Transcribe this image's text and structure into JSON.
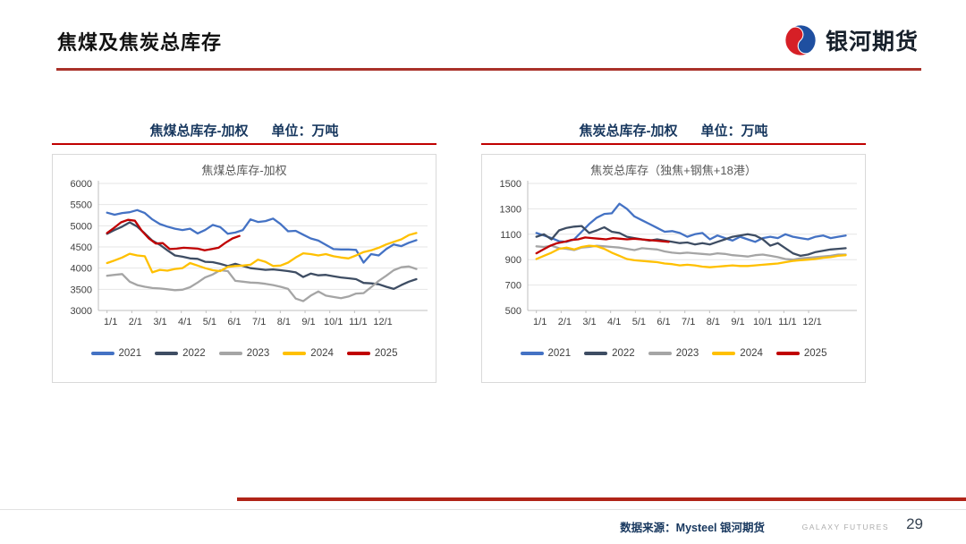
{
  "page": {
    "title": "焦煤及焦炭总库存"
  },
  "logo": {
    "text": "银河期货"
  },
  "footer": {
    "source": "数据来源：Mysteel 银河期货",
    "brand": "GALAXY FUTURES",
    "page_number": "29"
  },
  "colors": {
    "title_underline": "#A93129",
    "panel_underline": "#C00000",
    "panel_title": "#17375E",
    "logo_blue": "#1F4FA0",
    "logo_red": "#D61F26"
  },
  "charts": [
    {
      "header": {
        "title": "焦煤总库存-加权",
        "unit": "单位：万吨"
      },
      "chart_data": {
        "type": "line",
        "title": "焦煤总库存-加权",
        "ylim": [
          3000,
          6000
        ],
        "ytick_step": 500,
        "xticks": [
          "1/1",
          "2/1",
          "3/1",
          "4/1",
          "5/1",
          "6/1",
          "7/1",
          "8/1",
          "9/1",
          "10/1",
          "11/1",
          "12/1"
        ],
        "grid": "horizontal",
        "legend_position": "bottom",
        "series": [
          {
            "name": "2021",
            "color": "#4472C4",
            "x_end": 12.5,
            "values": [
              5310,
              5260,
              5300,
              5320,
              5370,
              5300,
              5150,
              5040,
              4980,
              4930,
              4900,
              4930,
              4820,
              4900,
              5020,
              4970,
              4810,
              4840,
              4900,
              5150,
              5090,
              5110,
              5170,
              5040,
              4870,
              4880,
              4790,
              4700,
              4650,
              4550,
              4450,
              4440,
              4440,
              4430,
              4130,
              4330,
              4300,
              4450,
              4560,
              4520,
              4600,
              4660
            ]
          },
          {
            "name": "2022",
            "color": "#3E4D63",
            "x_end": 12.5,
            "values": [
              4810,
              4900,
              4980,
              5080,
              4980,
              4820,
              4650,
              4550,
              4420,
              4300,
              4270,
              4230,
              4220,
              4150,
              4140,
              4100,
              4050,
              4100,
              4050,
              4000,
              3980,
              3960,
              3970,
              3950,
              3930,
              3900,
              3790,
              3870,
              3830,
              3840,
              3810,
              3780,
              3760,
              3740,
              3650,
              3640,
              3620,
              3560,
              3510,
              3600,
              3680,
              3740
            ]
          },
          {
            "name": "2023",
            "color": "#A5A5A5",
            "x_end": 12.5,
            "values": [
              3820,
              3840,
              3860,
              3680,
              3600,
              3560,
              3530,
              3520,
              3500,
              3480,
              3490,
              3550,
              3660,
              3780,
              3850,
              3950,
              3930,
              3700,
              3680,
              3660,
              3650,
              3630,
              3600,
              3560,
              3510,
              3280,
              3220,
              3350,
              3450,
              3350,
              3320,
              3290,
              3330,
              3400,
              3410,
              3550,
              3700,
              3820,
              3950,
              4020,
              4040,
              3980
            ]
          },
          {
            "name": "2024",
            "color": "#FFC000",
            "x_end": 12.5,
            "values": [
              4120,
              4180,
              4250,
              4340,
              4300,
              4280,
              3900,
              3960,
              3940,
              3980,
              4000,
              4120,
              4060,
              4000,
              3950,
              3930,
              4030,
              4050,
              4060,
              4080,
              4200,
              4150,
              4050,
              4060,
              4130,
              4250,
              4350,
              4330,
              4300,
              4330,
              4280,
              4250,
              4230,
              4300,
              4380,
              4420,
              4480,
              4560,
              4620,
              4680,
              4780,
              4830
            ]
          },
          {
            "name": "2025",
            "color": "#C00000",
            "x_end": 5.35,
            "values": [
              4830,
              4950,
              5080,
              5140,
              5120,
              4880,
              4700,
              4580,
              4590,
              4450,
              4460,
              4480,
              4470,
              4460,
              4420,
              4450,
              4480,
              4600,
              4700,
              4760
            ]
          }
        ]
      }
    },
    {
      "header": {
        "title": "焦炭总库存-加权",
        "unit": "单位：万吨"
      },
      "chart_data": {
        "type": "line",
        "title": "焦炭总库存（独焦+钢焦+18港）",
        "ylim": [
          500,
          1500
        ],
        "ytick_step": 200,
        "xticks": [
          "1/1",
          "2/1",
          "3/1",
          "4/1",
          "5/1",
          "6/1",
          "7/1",
          "8/1",
          "9/1",
          "10/1",
          "11/1",
          "12/1"
        ],
        "grid": "horizontal",
        "legend_position": "bottom",
        "series": [
          {
            "name": "2021",
            "color": "#4472C4",
            "x_end": 12.5,
            "values": [
              1110,
              1090,
              1070,
              1045,
              1040,
              1060,
              1120,
              1180,
              1230,
              1260,
              1265,
              1340,
              1300,
              1240,
              1210,
              1180,
              1150,
              1120,
              1125,
              1110,
              1080,
              1100,
              1110,
              1060,
              1090,
              1070,
              1050,
              1080,
              1060,
              1040,
              1070,
              1080,
              1070,
              1100,
              1080,
              1070,
              1060,
              1080,
              1090,
              1070,
              1080,
              1090
            ]
          },
          {
            "name": "2022",
            "color": "#3E4D63",
            "x_end": 12.5,
            "values": [
              1080,
              1100,
              1060,
              1130,
              1150,
              1160,
              1165,
              1110,
              1130,
              1155,
              1120,
              1110,
              1080,
              1070,
              1060,
              1050,
              1060,
              1050,
              1040,
              1030,
              1035,
              1020,
              1030,
              1020,
              1040,
              1060,
              1080,
              1090,
              1100,
              1090,
              1060,
              1010,
              1030,
              990,
              950,
              930,
              940,
              960,
              970,
              980,
              985,
              990
            ]
          },
          {
            "name": "2023",
            "color": "#A5A5A5",
            "x_end": 12.5,
            "values": [
              1005,
              1000,
              1010,
              990,
              985,
              975,
              995,
              1000,
              1010,
              1005,
              1000,
              995,
              985,
              975,
              990,
              985,
              980,
              965,
              955,
              950,
              955,
              950,
              945,
              940,
              950,
              945,
              935,
              930,
              925,
              935,
              940,
              930,
              920,
              905,
              900,
              910,
              915,
              920,
              925,
              930,
              940,
              940
            ]
          },
          {
            "name": "2024",
            "color": "#FFC000",
            "x_end": 12.5,
            "values": [
              905,
              930,
              955,
              985,
              995,
              980,
              1000,
              1010,
              1005,
              985,
              955,
              930,
              905,
              895,
              890,
              885,
              880,
              870,
              865,
              855,
              860,
              855,
              845,
              840,
              845,
              850,
              855,
              850,
              850,
              855,
              860,
              865,
              870,
              880,
              890,
              895,
              900,
              905,
              915,
              920,
              930,
              935
            ]
          },
          {
            "name": "2025",
            "color": "#C00000",
            "x_end": 5.35,
            "values": [
              950,
              980,
              1010,
              1030,
              1040,
              1055,
              1060,
              1075,
              1070,
              1065,
              1060,
              1070,
              1065,
              1060,
              1065,
              1060,
              1055,
              1050,
              1045,
              1040
            ]
          }
        ]
      }
    }
  ]
}
